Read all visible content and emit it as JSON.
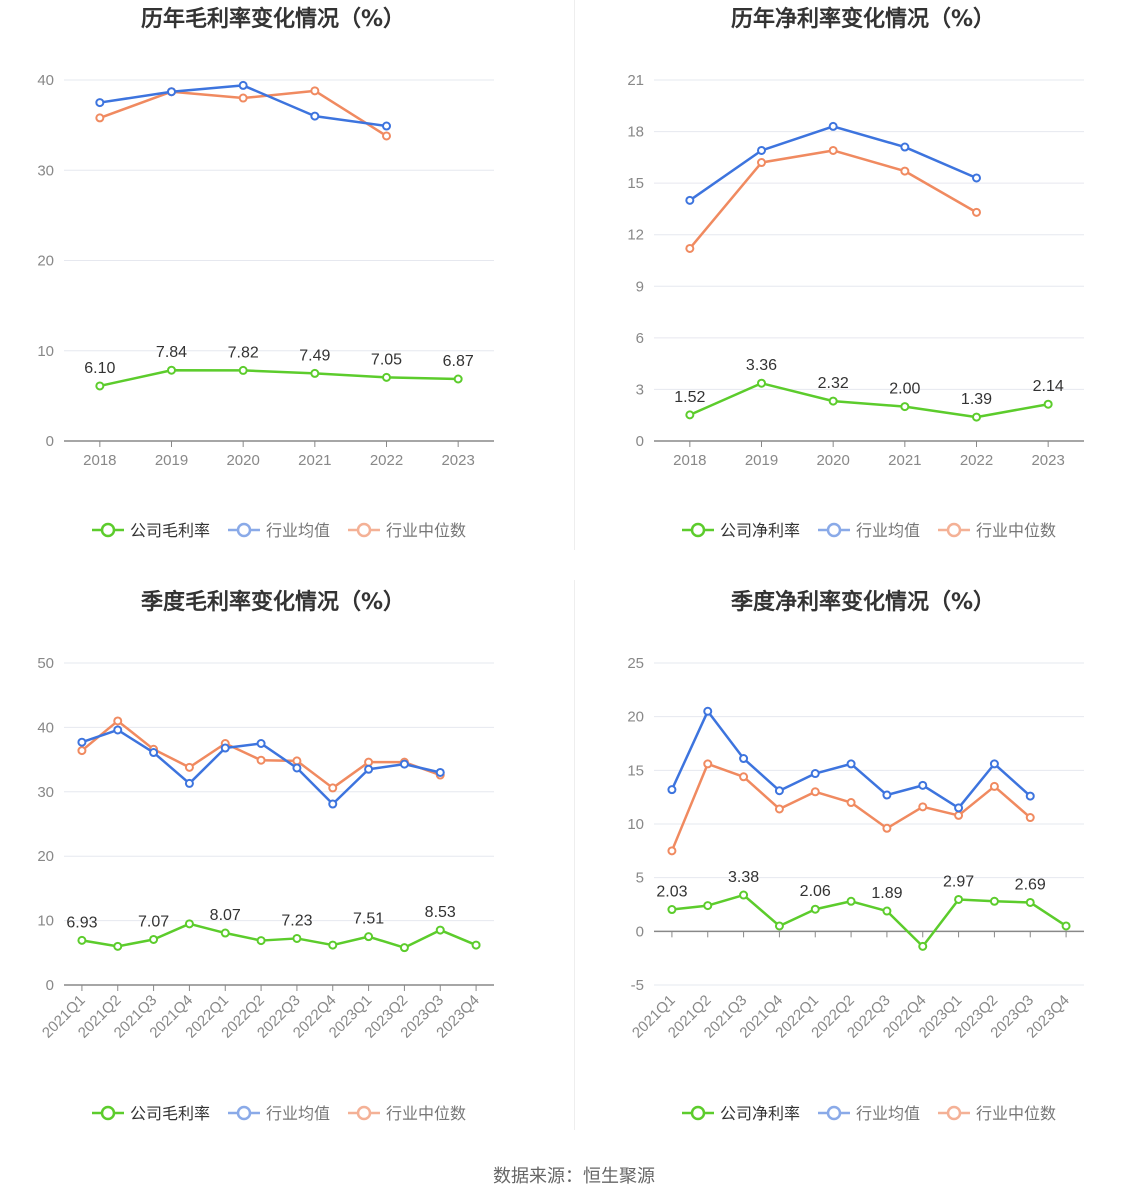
{
  "source": "数据来源：恒生聚源",
  "legend_common": [
    "行业均值",
    "行业中位数"
  ],
  "colors": {
    "company": "#5ccc2c",
    "avg": "#3d74de",
    "median": "#f08a60"
  },
  "chart_data": [
    {
      "type": "line",
      "title": "历年毛利率变化情况（%）",
      "x": [
        "2018",
        "2019",
        "2020",
        "2021",
        "2022",
        "2023"
      ],
      "ylim": [
        0,
        40
      ],
      "yticks": [
        0,
        10,
        20,
        30,
        40
      ],
      "series": [
        {
          "name": "公司毛利率",
          "values": [
            6.1,
            7.84,
            7.82,
            7.49,
            7.05,
            6.87
          ],
          "labels": [
            "6.10",
            "7.84",
            "7.82",
            "7.49",
            "7.05",
            "6.87"
          ]
        },
        {
          "name": "行业均值",
          "values": [
            37.5,
            38.7,
            39.4,
            36.0,
            34.9,
            null
          ]
        },
        {
          "name": "行业中位数",
          "values": [
            35.8,
            38.7,
            38.0,
            38.8,
            33.8,
            null
          ]
        }
      ]
    },
    {
      "type": "line",
      "title": "历年净利率变化情况（%）",
      "x": [
        "2018",
        "2019",
        "2020",
        "2021",
        "2022",
        "2023"
      ],
      "ylim": [
        0,
        21
      ],
      "yticks": [
        0,
        3,
        6,
        9,
        12,
        15,
        18,
        21
      ],
      "series": [
        {
          "name": "公司净利率",
          "values": [
            1.52,
            3.36,
            2.32,
            2.0,
            1.39,
            2.14
          ],
          "labels": [
            "1.52",
            "3.36",
            "2.32",
            "2.00",
            "1.39",
            "2.14"
          ]
        },
        {
          "name": "行业均值",
          "values": [
            14.0,
            16.9,
            18.3,
            17.1,
            15.3,
            null
          ]
        },
        {
          "name": "行业中位数",
          "values": [
            11.2,
            16.2,
            16.9,
            15.7,
            13.3,
            null
          ]
        }
      ]
    },
    {
      "type": "line",
      "title": "季度毛利率变化情况（%）",
      "x": [
        "2021Q1",
        "2021Q2",
        "2021Q3",
        "2021Q4",
        "2022Q1",
        "2022Q2",
        "2022Q3",
        "2022Q4",
        "2023Q1",
        "2023Q2",
        "2023Q3",
        "2023Q4"
      ],
      "ylim": [
        0,
        50
      ],
      "yticks": [
        0,
        10,
        20,
        30,
        40,
        50
      ],
      "series": [
        {
          "name": "公司毛利率",
          "values": [
            6.93,
            6.0,
            7.07,
            9.5,
            8.07,
            6.9,
            7.23,
            6.2,
            7.51,
            5.8,
            8.53,
            6.2
          ],
          "labels": [
            "6.93",
            "",
            "7.07",
            "",
            "8.07",
            "",
            "7.23",
            "",
            "7.51",
            "",
            "8.53",
            ""
          ]
        },
        {
          "name": "行业均值",
          "values": [
            37.7,
            39.6,
            36.1,
            31.3,
            36.8,
            37.5,
            33.7,
            28.1,
            33.5,
            34.3,
            33.0,
            null
          ]
        },
        {
          "name": "行业中位数",
          "values": [
            36.4,
            41.0,
            36.6,
            33.8,
            37.5,
            34.9,
            34.8,
            30.6,
            34.6,
            34.6,
            32.6,
            null
          ]
        }
      ]
    },
    {
      "type": "line",
      "title": "季度净利率变化情况（%）",
      "x": [
        "2021Q1",
        "2021Q2",
        "2021Q3",
        "2021Q4",
        "2022Q1",
        "2022Q2",
        "2022Q3",
        "2022Q4",
        "2023Q1",
        "2023Q2",
        "2023Q3",
        "2023Q4"
      ],
      "ylim": [
        -5,
        25
      ],
      "yticks": [
        -5,
        0,
        5,
        10,
        15,
        20,
        25
      ],
      "series": [
        {
          "name": "公司净利率",
          "values": [
            2.03,
            2.4,
            3.38,
            0.5,
            2.06,
            2.8,
            1.89,
            -1.4,
            2.97,
            2.8,
            2.69,
            0.5
          ],
          "labels": [
            "2.03",
            "",
            "3.38",
            "",
            "2.06",
            "",
            "1.89",
            "",
            "2.97",
            "",
            "2.69",
            ""
          ]
        },
        {
          "name": "行业均值",
          "values": [
            13.2,
            20.5,
            16.1,
            13.1,
            14.7,
            15.6,
            12.7,
            13.6,
            11.5,
            15.6,
            12.6,
            null
          ]
        },
        {
          "name": "行业中位数",
          "values": [
            7.5,
            15.6,
            14.4,
            11.4,
            13.0,
            12.0,
            9.6,
            11.6,
            10.8,
            13.5,
            10.6,
            null
          ]
        }
      ]
    }
  ]
}
